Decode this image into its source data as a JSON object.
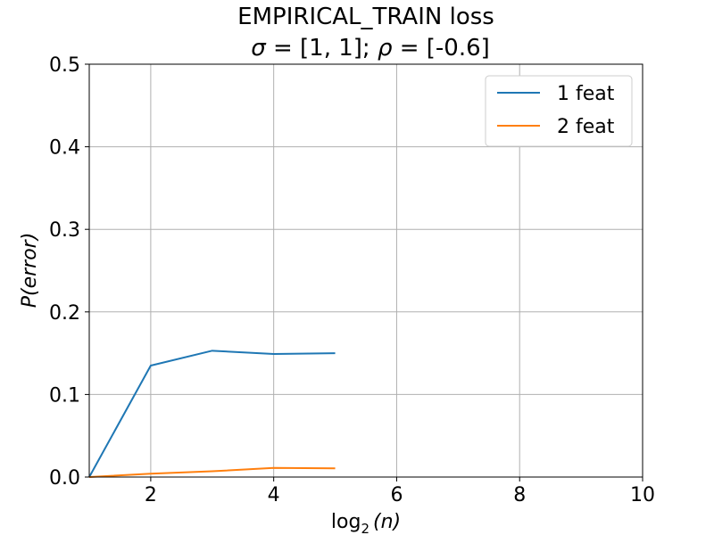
{
  "chart_data": {
    "type": "line",
    "title_line1": "EMPIRICAL_TRAIN loss",
    "title_sigma_sym": "σ",
    "title_sigma_val": " = [1, 1];  ",
    "title_rho_sym": "ρ",
    "title_rho_val": " = [-0.6]",
    "xlabel_prefix": "log",
    "xlabel_sub": "2",
    "xlabel_suffix": "(n)",
    "ylabel": "P(error)",
    "xlim": [
      1,
      10
    ],
    "ylim": [
      0,
      0.5
    ],
    "xticks": [
      2,
      4,
      6,
      8,
      10
    ],
    "yticks": [
      0.0,
      0.1,
      0.2,
      0.3,
      0.4,
      0.5
    ],
    "grid": true,
    "legend_position": "top-right",
    "x": [
      1,
      2,
      3,
      4,
      5
    ],
    "series": [
      {
        "name": "1 feat",
        "color": "#1f77b4",
        "values": [
          0.0,
          0.135,
          0.153,
          0.149,
          0.15
        ]
      },
      {
        "name": "2 feat",
        "color": "#ff7f0e",
        "values": [
          0.0,
          0.004,
          0.007,
          0.011,
          0.0105
        ]
      }
    ]
  }
}
